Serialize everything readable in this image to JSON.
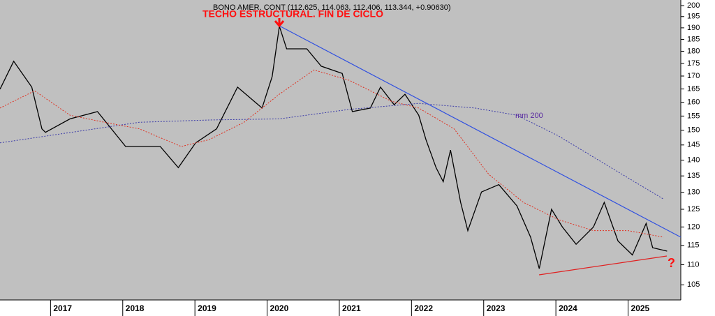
{
  "chart_data": {
    "type": "line",
    "title": "BONO AMER. CONT (112.625, 114.063, 112.406, 113.344, +0.90630)",
    "annotations": [
      "TECHO ESTRUCTURAL. FIN DE CICLO",
      "?"
    ],
    "log_y": true,
    "xlim": [
      2016.3,
      2025.73
    ],
    "xticks": [
      2017,
      2018,
      2019,
      2020,
      2021,
      2022,
      2023,
      2024,
      2025
    ],
    "ylim": [
      101.4,
      202.6
    ],
    "yticks": [
      105,
      110,
      115,
      120,
      125,
      130,
      135,
      140,
      145,
      150,
      155,
      160,
      165,
      170,
      175,
      180,
      185,
      190,
      195,
      200
    ],
    "series": [
      {
        "color": "#000000",
        "style": "solid",
        "x": [
          2016.3,
          2016.49,
          2016.74,
          2016.88,
          2016.93,
          2017.27,
          2017.65,
          2018.04,
          2018.52,
          2018.77,
          2019.01,
          2019.3,
          2019.59,
          2019.93,
          2020.07,
          2020.17,
          2020.27,
          2020.55,
          2020.75,
          2021.04,
          2021.18,
          2021.43,
          2021.57,
          2021.76,
          2021.91,
          2022.1,
          2022.2,
          2022.34,
          2022.44,
          2022.54,
          2022.68,
          2022.78,
          2022.97,
          2023.21,
          2023.46,
          2023.65,
          2023.77,
          2023.94,
          2024.09,
          2024.28,
          2024.52,
          2024.67,
          2024.86,
          2025.06,
          2025.25,
          2025.34,
          2025.54
        ],
        "values": [
          164.9,
          175.9,
          165.7,
          150.5,
          149.3,
          154,
          156.6,
          144.5,
          144.5,
          137.6,
          145.7,
          150.5,
          165.7,
          157.9,
          169.8,
          190.7,
          181,
          181,
          173.9,
          171,
          156.6,
          157.9,
          165.7,
          159.1,
          163,
          155.3,
          146.8,
          137.6,
          133.2,
          143.3,
          127,
          119,
          130.1,
          132.3,
          126,
          117.2,
          109,
          125,
          120,
          115.3,
          120,
          127,
          116.2,
          112.5,
          121,
          114.4,
          113.5
        ]
      },
      {
        "name": "mm 200",
        "color": "#3a3aa8",
        "style": "dotted",
        "x": [
          2016.3,
          2018.23,
          2019.2,
          2020.17,
          2021.14,
          2022.1,
          2022.88,
          2023.46,
          2024.04,
          2024.52,
          2025.0,
          2025.49
        ],
        "values": [
          145.7,
          152.8,
          153.6,
          154,
          157.4,
          159.6,
          157.9,
          155.3,
          148,
          141,
          134.4,
          128
        ]
      },
      {
        "color": "#e03020",
        "style": "dotted",
        "x": [
          2016.3,
          2016.78,
          2017.27,
          2017.75,
          2018.23,
          2018.81,
          2019.2,
          2019.68,
          2020.17,
          2020.65,
          2021.14,
          2021.72,
          2022.1,
          2022.59,
          2023.07,
          2023.55,
          2024.04,
          2024.52,
          2025.0,
          2025.49
        ],
        "values": [
          157.9,
          164.3,
          155.3,
          152.8,
          150.5,
          144.5,
          146.8,
          152.8,
          163,
          172.4,
          168.3,
          160.4,
          157.9,
          150.5,
          135.5,
          127,
          122,
          119,
          119,
          117.2
        ]
      }
    ]
  }
}
